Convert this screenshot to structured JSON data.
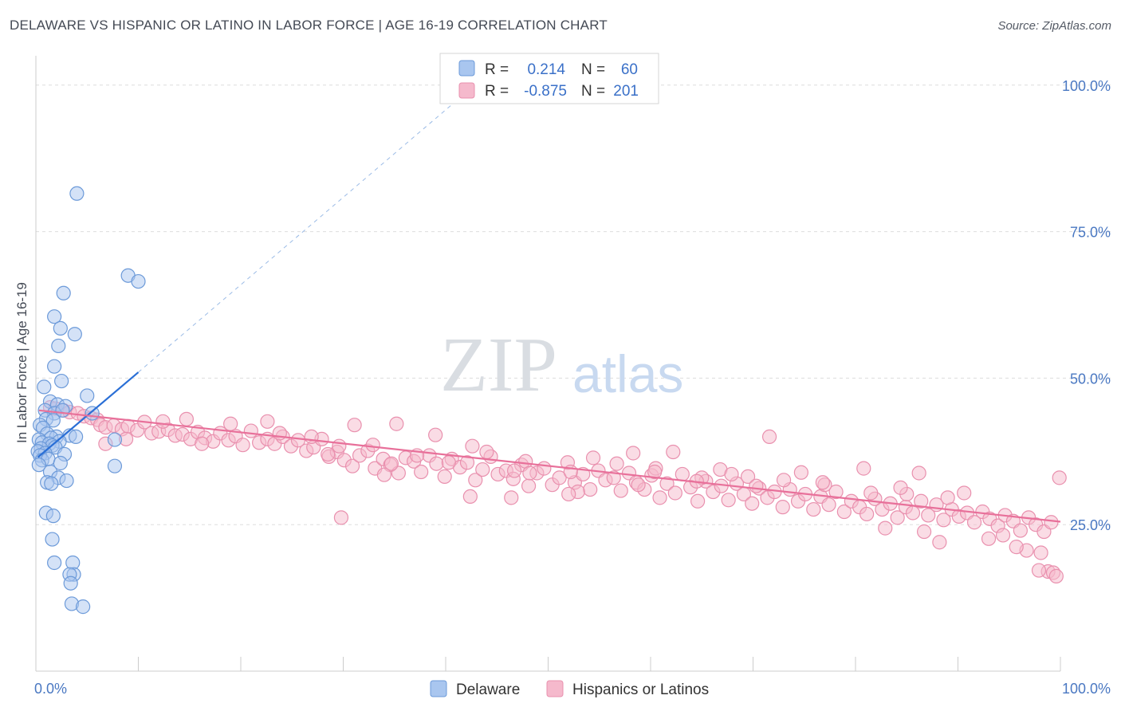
{
  "title": "DELAWARE VS HISPANIC OR LATINO IN LABOR FORCE | AGE 16-19 CORRELATION CHART",
  "source": "Source: ZipAtlas.com",
  "watermark": {
    "zip": "ZIP",
    "atlas": "atlas"
  },
  "colors": {
    "blue_fill": "#a9c6ef",
    "blue_stroke": "#6c9ad9",
    "blue_line": "#2a6fd6",
    "pink_fill": "#f5b9cc",
    "pink_stroke": "#e990ae",
    "pink_line": "#e8709a",
    "tick_text": "#4a78c2",
    "grid": "#dddddd"
  },
  "legend_top": {
    "rows": [
      {
        "r_label": "R =",
        "r_value": "0.214",
        "n_label": "N =",
        "n_value": "60"
      },
      {
        "r_label": "R =",
        "r_value": "-0.875",
        "n_label": "N =",
        "n_value": "201"
      }
    ]
  },
  "legend_bottom": {
    "items": [
      "Delaware",
      "Hispanics or Latinos"
    ]
  },
  "chart_data": {
    "type": "scatter",
    "title": "DELAWARE VS HISPANIC OR LATINO IN LABOR FORCE | AGE 16-19 CORRELATION CHART",
    "ylabel": "In Labor Force | Age 16-19",
    "xlabel": "",
    "x_tick_labels": [
      "0.0%",
      "100.0%"
    ],
    "y_tick_labels": [
      "100.0%",
      "75.0%",
      "50.0%",
      "25.0%"
    ],
    "xlim": [
      0,
      100
    ],
    "ylim": [
      0,
      105
    ],
    "y_ticks": [
      100,
      75,
      50,
      25
    ],
    "grid": true,
    "legend_placement": "top-center and bottom-center",
    "series": [
      {
        "name": "Delaware",
        "r": 0.214,
        "n": 60,
        "trend": {
          "x": [
            0.2,
            10.0
          ],
          "y": [
            36.5,
            51.0
          ]
        },
        "trend_dashed": {
          "x": [
            10.0,
            43.5
          ],
          "y": [
            51.0,
            101.0
          ]
        },
        "points": [
          [
            4.0,
            81.5
          ],
          [
            9.0,
            67.5
          ],
          [
            10.0,
            66.5
          ],
          [
            2.7,
            64.5
          ],
          [
            1.8,
            60.5
          ],
          [
            2.4,
            58.5
          ],
          [
            3.8,
            57.5
          ],
          [
            2.2,
            55.5
          ],
          [
            1.8,
            52.0
          ],
          [
            2.5,
            49.5
          ],
          [
            0.8,
            48.5
          ],
          [
            5.0,
            47.0
          ],
          [
            1.4,
            46.0
          ],
          [
            2.1,
            45.5
          ],
          [
            2.9,
            45.2
          ],
          [
            0.9,
            44.5
          ],
          [
            1.8,
            44.0
          ],
          [
            5.5,
            44.0
          ],
          [
            2.6,
            44.5
          ],
          [
            1.0,
            43.0
          ],
          [
            1.7,
            42.8
          ],
          [
            0.4,
            42.0
          ],
          [
            0.7,
            41.5
          ],
          [
            1.1,
            40.5
          ],
          [
            3.3,
            40.2
          ],
          [
            2.0,
            40.0
          ],
          [
            1.5,
            39.8
          ],
          [
            0.3,
            39.5
          ],
          [
            2.3,
            39.2
          ],
          [
            0.6,
            39.0
          ],
          [
            3.9,
            40.0
          ],
          [
            7.7,
            39.5
          ],
          [
            1.3,
            38.8
          ],
          [
            1.6,
            38.5
          ],
          [
            0.5,
            38.0
          ],
          [
            1.9,
            38.2
          ],
          [
            0.2,
            37.5
          ],
          [
            0.9,
            37.2
          ],
          [
            2.8,
            37.0
          ],
          [
            0.4,
            36.8
          ],
          [
            0.6,
            36.0
          ],
          [
            1.2,
            36.2
          ],
          [
            2.4,
            35.5
          ],
          [
            0.3,
            35.2
          ],
          [
            7.7,
            35.0
          ],
          [
            1.4,
            34.0
          ],
          [
            2.2,
            33.0
          ],
          [
            3.0,
            32.5
          ],
          [
            1.1,
            32.2
          ],
          [
            1.5,
            32.0
          ],
          [
            1.0,
            27.0
          ],
          [
            1.7,
            26.5
          ],
          [
            1.6,
            22.5
          ],
          [
            1.8,
            18.5
          ],
          [
            3.6,
            18.5
          ],
          [
            3.7,
            16.5
          ],
          [
            3.3,
            16.5
          ],
          [
            3.4,
            15.0
          ],
          [
            3.5,
            11.5
          ],
          [
            4.6,
            11.0
          ]
        ]
      },
      {
        "name": "Hispanics or Latinos",
        "r": -0.875,
        "n": 201,
        "trend": {
          "x": [
            0.3,
            100.0
          ],
          "y": [
            44.5,
            25.5
          ]
        },
        "points": [
          [
            1.4,
            45.0
          ],
          [
            1.9,
            44.8
          ],
          [
            2.7,
            44.5
          ],
          [
            3.3,
            44.2
          ],
          [
            4.1,
            44.0
          ],
          [
            4.7,
            43.5
          ],
          [
            5.4,
            43.2
          ],
          [
            6.0,
            42.9
          ],
          [
            6.3,
            42.0
          ],
          [
            6.8,
            41.6
          ],
          [
            7.6,
            41.9
          ],
          [
            8.4,
            41.3
          ],
          [
            9.0,
            41.8
          ],
          [
            9.9,
            41.1
          ],
          [
            10.6,
            42.5
          ],
          [
            11.3,
            40.6
          ],
          [
            12.0,
            40.9
          ],
          [
            12.9,
            41.2
          ],
          [
            13.6,
            40.2
          ],
          [
            14.3,
            40.4
          ],
          [
            15.1,
            39.6
          ],
          [
            15.8,
            40.8
          ],
          [
            16.5,
            39.8
          ],
          [
            17.3,
            39.2
          ],
          [
            18.0,
            40.6
          ],
          [
            18.8,
            39.4
          ],
          [
            19.5,
            40.1
          ],
          [
            20.2,
            38.6
          ],
          [
            21.0,
            41.0
          ],
          [
            21.8,
            39.0
          ],
          [
            22.6,
            39.6
          ],
          [
            23.3,
            38.8
          ],
          [
            24.1,
            40.0
          ],
          [
            24.9,
            38.4
          ],
          [
            25.6,
            39.4
          ],
          [
            26.4,
            37.6
          ],
          [
            27.1,
            38.2
          ],
          [
            27.9,
            39.6
          ],
          [
            28.6,
            36.6
          ],
          [
            29.4,
            37.4
          ],
          [
            30.1,
            36.0
          ],
          [
            30.9,
            35.0
          ],
          [
            31.6,
            36.8
          ],
          [
            32.4,
            37.6
          ],
          [
            33.1,
            34.6
          ],
          [
            33.9,
            36.2
          ],
          [
            34.6,
            35.2
          ],
          [
            35.4,
            33.8
          ],
          [
            36.1,
            36.4
          ],
          [
            36.9,
            35.8
          ],
          [
            37.6,
            34.0
          ],
          [
            38.4,
            36.8
          ],
          [
            39.1,
            35.4
          ],
          [
            39.9,
            33.2
          ],
          [
            40.6,
            36.2
          ],
          [
            41.4,
            34.8
          ],
          [
            42.1,
            35.6
          ],
          [
            42.9,
            32.6
          ],
          [
            43.6,
            34.4
          ],
          [
            44.4,
            36.6
          ],
          [
            45.1,
            33.6
          ],
          [
            45.9,
            34.2
          ],
          [
            46.6,
            32.8
          ],
          [
            47.4,
            35.2
          ],
          [
            48.1,
            31.6
          ],
          [
            48.9,
            33.8
          ],
          [
            49.6,
            34.6
          ],
          [
            50.4,
            31.8
          ],
          [
            51.1,
            33.0
          ],
          [
            51.9,
            35.6
          ],
          [
            52.6,
            32.2
          ],
          [
            53.4,
            33.6
          ],
          [
            54.1,
            31.0
          ],
          [
            54.9,
            34.2
          ],
          [
            55.6,
            32.6
          ],
          [
            56.4,
            33.0
          ],
          [
            57.1,
            30.8
          ],
          [
            57.9,
            33.8
          ],
          [
            58.6,
            32.2
          ],
          [
            59.4,
            31.0
          ],
          [
            60.1,
            33.4
          ],
          [
            60.9,
            29.6
          ],
          [
            61.6,
            32.0
          ],
          [
            62.4,
            30.4
          ],
          [
            63.1,
            33.6
          ],
          [
            63.9,
            31.4
          ],
          [
            64.6,
            29.0
          ],
          [
            65.4,
            32.4
          ],
          [
            66.1,
            30.6
          ],
          [
            66.9,
            31.6
          ],
          [
            67.6,
            29.2
          ],
          [
            68.4,
            32.0
          ],
          [
            69.1,
            30.2
          ],
          [
            69.9,
            28.6
          ],
          [
            70.6,
            31.2
          ],
          [
            71.4,
            29.6
          ],
          [
            72.1,
            30.6
          ],
          [
            72.9,
            28.0
          ],
          [
            73.6,
            31.0
          ],
          [
            74.4,
            29.0
          ],
          [
            75.1,
            30.2
          ],
          [
            75.9,
            27.6
          ],
          [
            76.6,
            29.8
          ],
          [
            77.4,
            28.4
          ],
          [
            78.1,
            30.6
          ],
          [
            78.9,
            27.2
          ],
          [
            79.6,
            29.0
          ],
          [
            80.4,
            28.0
          ],
          [
            81.1,
            26.8
          ],
          [
            81.9,
            29.4
          ],
          [
            82.6,
            27.6
          ],
          [
            83.4,
            28.6
          ],
          [
            84.1,
            26.2
          ],
          [
            84.9,
            28.0
          ],
          [
            85.6,
            27.0
          ],
          [
            86.4,
            29.0
          ],
          [
            87.1,
            26.6
          ],
          [
            87.9,
            28.4
          ],
          [
            88.6,
            25.8
          ],
          [
            89.4,
            27.6
          ],
          [
            90.1,
            26.4
          ],
          [
            90.9,
            27.0
          ],
          [
            91.6,
            25.4
          ],
          [
            92.4,
            27.2
          ],
          [
            93.1,
            26.0
          ],
          [
            93.9,
            24.8
          ],
          [
            94.6,
            26.6
          ],
          [
            95.4,
            25.6
          ],
          [
            96.1,
            24.0
          ],
          [
            96.9,
            26.2
          ],
          [
            97.6,
            25.0
          ],
          [
            98.4,
            23.8
          ],
          [
            99.1,
            25.4
          ],
          [
            6.8,
            38.8
          ],
          [
            8.8,
            39.6
          ],
          [
            12.4,
            42.6
          ],
          [
            14.7,
            43.0
          ],
          [
            16.2,
            38.8
          ],
          [
            19.0,
            42.2
          ],
          [
            23.8,
            40.6
          ],
          [
            26.9,
            40.0
          ],
          [
            29.6,
            38.4
          ],
          [
            32.9,
            38.6
          ],
          [
            37.2,
            36.8
          ],
          [
            40.3,
            35.6
          ],
          [
            44.0,
            37.4
          ],
          [
            47.8,
            35.8
          ],
          [
            52.2,
            34.0
          ],
          [
            56.7,
            35.4
          ],
          [
            60.5,
            34.6
          ],
          [
            65.0,
            33.0
          ],
          [
            69.5,
            33.2
          ],
          [
            73.0,
            32.6
          ],
          [
            77.0,
            31.8
          ],
          [
            81.5,
            30.4
          ],
          [
            85.0,
            30.2
          ],
          [
            89.0,
            29.6
          ],
          [
            22.6,
            42.6
          ],
          [
            31.1,
            42.0
          ],
          [
            35.2,
            42.2
          ],
          [
            39.0,
            40.3
          ],
          [
            42.6,
            38.4
          ],
          [
            58.3,
            37.2
          ],
          [
            62.2,
            37.4
          ],
          [
            71.6,
            40.0
          ],
          [
            80.8,
            34.6
          ],
          [
            28.5,
            37.0
          ],
          [
            34.0,
            33.5
          ],
          [
            46.4,
            29.6
          ],
          [
            52.9,
            30.6
          ],
          [
            58.8,
            31.8
          ],
          [
            64.5,
            32.4
          ],
          [
            70.3,
            31.6
          ],
          [
            76.8,
            32.2
          ],
          [
            86.2,
            33.8
          ],
          [
            82.9,
            24.4
          ],
          [
            86.7,
            23.8
          ],
          [
            88.2,
            22.0
          ],
          [
            93.0,
            22.6
          ],
          [
            96.7,
            20.6
          ],
          [
            98.1,
            20.2
          ],
          [
            98.8,
            17.0
          ],
          [
            99.3,
            16.8
          ],
          [
            99.6,
            16.2
          ],
          [
            99.9,
            33.0
          ],
          [
            29.8,
            26.2
          ],
          [
            34.7,
            35.4
          ],
          [
            48.2,
            33.8
          ],
          [
            94.4,
            23.2
          ],
          [
            95.7,
            21.2
          ],
          [
            97.9,
            17.2
          ],
          [
            90.6,
            30.4
          ],
          [
            54.4,
            36.4
          ],
          [
            66.8,
            34.4
          ],
          [
            74.7,
            33.9
          ],
          [
            84.4,
            31.3
          ],
          [
            42.4,
            29.8
          ],
          [
            46.7,
            34.2
          ],
          [
            52.0,
            30.2
          ],
          [
            60.4,
            34.0
          ],
          [
            67.9,
            33.6
          ]
        ]
      }
    ]
  }
}
